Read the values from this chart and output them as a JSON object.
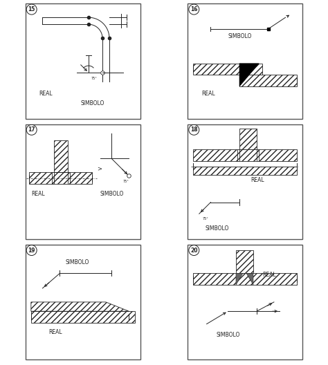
{
  "bg_color": "#ffffff",
  "line_color": "#222222",
  "panels": [
    {
      "number": "15",
      "real_label": "REAL",
      "sym_label": "SIMBOLO"
    },
    {
      "number": "16",
      "real_label": "REAL",
      "sym_label": "SIMBOLO"
    },
    {
      "number": "17",
      "real_label": "REAL",
      "sym_label": "SIMBOLO"
    },
    {
      "number": "18",
      "real_label": "REAL",
      "sym_label": "SIMBOLO"
    },
    {
      "number": "19",
      "real_label": "REAL",
      "sym_label": "SIMBOLO"
    },
    {
      "number": "20",
      "real_label": "REAL",
      "sym_label": "SIMBOLO"
    }
  ]
}
